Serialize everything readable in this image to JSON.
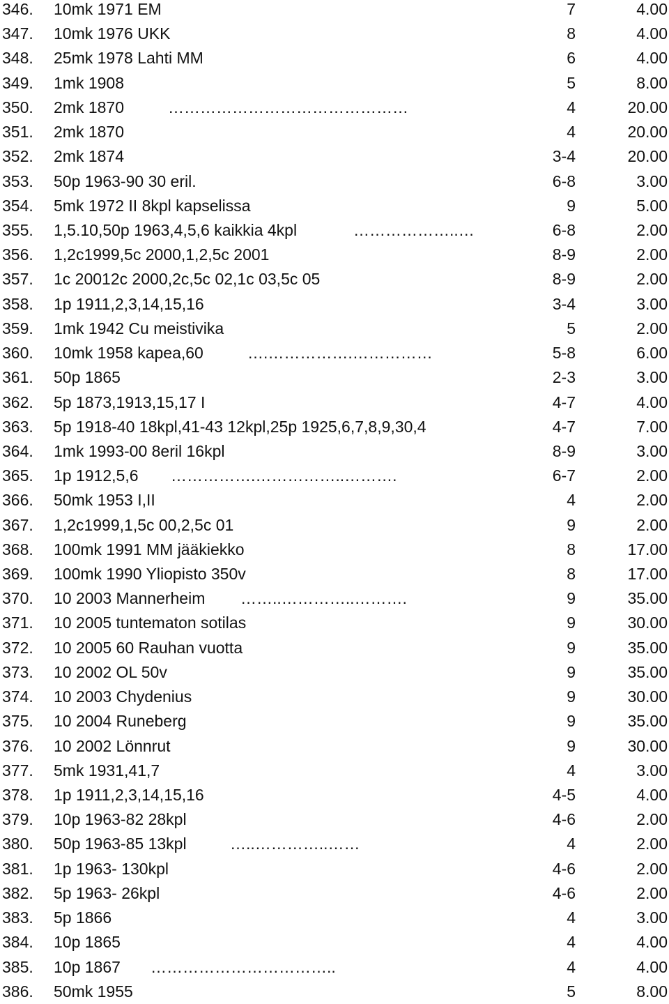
{
  "rows": [
    {
      "num": "346.",
      "desc": "10mk 1971 EM",
      "dots": "",
      "cond": "7",
      "price": "4.00"
    },
    {
      "num": "347.",
      "desc": "10mk 1976 UKK",
      "dots": "",
      "cond": "8",
      "price": "4.00"
    },
    {
      "num": "348.",
      "desc": "25mk 1978 Lahti MM",
      "dots": "",
      "cond": "6",
      "price": "4.00"
    },
    {
      "num": "349.",
      "desc": "1mk 1908",
      "dots": "",
      "cond": "5",
      "price": "8.00"
    },
    {
      "num": "350.",
      "desc": "2mk 1870",
      "dots": "………………………………………",
      "cond": "4",
      "price": "20.00"
    },
    {
      "num": "351.",
      "desc": "2mk 1870",
      "dots": "",
      "cond": "4",
      "price": "20.00"
    },
    {
      "num": "352.",
      "desc": "2mk 1874",
      "dots": "",
      "cond": "3-4",
      "price": "20.00"
    },
    {
      "num": "353.",
      "desc": "50p 1963-90 30 eril.",
      "dots": "",
      "cond": "6-8",
      "price": "3.00"
    },
    {
      "num": "354.",
      "desc": "5mk 1972 II 8kpl kapselissa",
      "dots": "",
      "cond": "9",
      "price": "5.00"
    },
    {
      "num": "355.",
      "desc": "1,5.10,50p 1963,4,5,6 kaikkia 4kpl",
      "dots": "………………..…",
      "cond": "6-8",
      "price": "2.00"
    },
    {
      "num": "356.",
      "desc": "1,2c1999,5c 2000,1,2,5c 2001",
      "dots": "",
      "cond": "8-9",
      "price": "2.00"
    },
    {
      "num": "357.",
      "desc": "1c 20012c 2000,2c,5c 02,1c 03,5c 05",
      "dots": "",
      "cond": "8-9",
      "price": "2.00"
    },
    {
      "num": "358.",
      "desc": "1p 1911,2,3,14,15,16",
      "dots": "",
      "cond": "3-4",
      "price": "3.00"
    },
    {
      "num": "359.",
      "desc": "1mk 1942 Cu meistivika",
      "dots": "",
      "cond": "5",
      "price": "2.00"
    },
    {
      "num": "360.",
      "desc": "10mk 1958 kapea,60",
      "dots": "….…………….……………",
      "cond": "5-8",
      "price": "6.00"
    },
    {
      "num": "361.",
      "desc": "50p 1865",
      "dots": "",
      "cond": "2-3",
      "price": "3.00"
    },
    {
      "num": "362.",
      "desc": "5p 1873,1913,15,17 I",
      "dots": "",
      "cond": "4-7",
      "price": "4.00"
    },
    {
      "num": "363.",
      "desc": "5p 1918-40 18kpl,41-43 12kpl,25p 1925,6,7,8,9,30,4",
      "dots": "",
      "cond": "4-7",
      "price": "7.00"
    },
    {
      "num": "364.",
      "desc": "1mk 1993-00 8eril 16kpl",
      "dots": "",
      "cond": "8-9",
      "price": "3.00"
    },
    {
      "num": "365.",
      "desc": "1p 1912,5,6",
      "dots": "…………….……………..……….",
      "cond": "6-7",
      "price": "2.00"
    },
    {
      "num": "366.",
      "desc": "50mk 1953 I,II",
      "dots": "",
      "cond": "4",
      "price": "2.00"
    },
    {
      "num": "367.",
      "desc": "1,2c1999,1,5c 00,2,5c 01",
      "dots": "",
      "cond": "9",
      "price": "2.00"
    },
    {
      "num": "368.",
      "desc": "100mk 1991 MM jääkiekko",
      "dots": "",
      "cond": "8",
      "price": "17.00"
    },
    {
      "num": "369.",
      "desc": "100mk 1990 Yliopisto 350v",
      "dots": "",
      "cond": "8",
      "price": "17.00"
    },
    {
      "num": "370.",
      "desc": "10 2003 Mannerheim",
      "dots": "……..…………..……….",
      "cond": "9",
      "price": "35.00"
    },
    {
      "num": "371.",
      "desc": "10 2005 tuntematon sotilas",
      "dots": "",
      "cond": "9",
      "price": "30.00"
    },
    {
      "num": "372.",
      "desc": "10 2005 60 Rauhan vuotta",
      "dots": "",
      "cond": "9",
      "price": "35.00"
    },
    {
      "num": "373.",
      "desc": "10 2002 OL 50v",
      "dots": "",
      "cond": "9",
      "price": "35.00"
    },
    {
      "num": "374.",
      "desc": "10 2003 Chydenius",
      "dots": "",
      "cond": "9",
      "price": "30.00"
    },
    {
      "num": "375.",
      "desc": "10 2004 Runeberg",
      "dots": "",
      "cond": "9",
      "price": "35.00"
    },
    {
      "num": "376.",
      "desc": "10 2002 Lönnrut",
      "dots": "",
      "cond": "9",
      "price": "30.00"
    },
    {
      "num": "377.",
      "desc": "5mk 1931,41,7",
      "dots": "",
      "cond": "4",
      "price": "3.00"
    },
    {
      "num": "378.",
      "desc": "1p 1911,2,3,14,15,16",
      "dots": "",
      "cond": "4-5",
      "price": "4.00"
    },
    {
      "num": "379.",
      "desc": "10p 1963-82 28kpl",
      "dots": "",
      "cond": "4-6",
      "price": "2.00"
    },
    {
      "num": "380.",
      "desc": "50p 1963-85 13kpl",
      "dots": "…..…………..……",
      "cond": "4",
      "price": "2.00"
    },
    {
      "num": "381.",
      "desc": "1p 1963- 130kpl",
      "dots": "",
      "cond": "4-6",
      "price": "2.00"
    },
    {
      "num": "382.",
      "desc": "5p 1963- 26kpl",
      "dots": "",
      "cond": "4-6",
      "price": "2.00"
    },
    {
      "num": "383.",
      "desc": "5p 1866",
      "dots": "",
      "cond": "4",
      "price": "3.00"
    },
    {
      "num": "384.",
      "desc": "10p 1865",
      "dots": "",
      "cond": "4",
      "price": "4.00"
    },
    {
      "num": "385.",
      "desc": "10p 1867",
      "dots": "……………………………..",
      "cond": "4",
      "price": "4.00"
    },
    {
      "num": "386.",
      "desc": "50mk 1955",
      "dots": "",
      "cond": "5",
      "price": "8.00"
    }
  ]
}
